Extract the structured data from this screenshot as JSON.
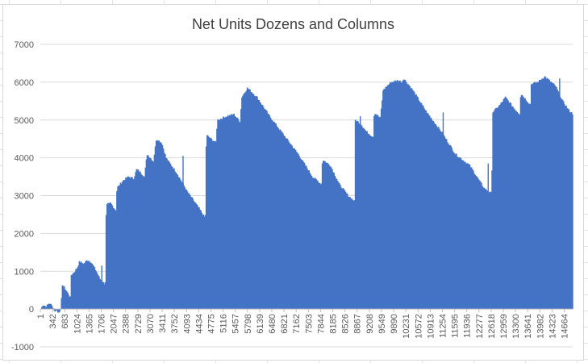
{
  "chart_data": {
    "type": "bar",
    "title": "Net Units Dozens and Columns",
    "xlabel": "",
    "ylabel": "",
    "ylim": [
      -1000,
      7000
    ],
    "yticks": [
      -1000,
      0,
      1000,
      2000,
      3000,
      4000,
      5000,
      6000,
      7000
    ],
    "x_tick_labels": [
      "1",
      "342",
      "683",
      "1024",
      "1365",
      "1706",
      "2047",
      "2388",
      "2729",
      "3070",
      "3411",
      "3752",
      "4093",
      "4434",
      "4775",
      "5116",
      "5457",
      "5798",
      "6139",
      "6480",
      "6821",
      "7162",
      "7503",
      "7844",
      "8185",
      "8526",
      "8867",
      "9208",
      "9549",
      "9890",
      "10231",
      "10572",
      "10913",
      "11254",
      "11595",
      "11936",
      "12277",
      "12618",
      "12959",
      "13300",
      "13641",
      "13982",
      "14323",
      "14664"
    ],
    "x_range": [
      1,
      14900
    ],
    "grid": "horizontal",
    "legend": "none",
    "color": "#4472C4",
    "profile": [
      [
        1,
        0
      ],
      [
        60,
        120
      ],
      [
        140,
        60
      ],
      [
        240,
        160
      ],
      [
        330,
        60
      ],
      [
        400,
        -80
      ],
      [
        430,
        0
      ],
      [
        480,
        -100
      ],
      [
        560,
        0
      ],
      [
        600,
        650
      ],
      [
        700,
        500
      ],
      [
        830,
        300
      ],
      [
        850,
        900
      ],
      [
        950,
        1000
      ],
      [
        1020,
        1100
      ],
      [
        1080,
        1250
      ],
      [
        1200,
        1200
      ],
      [
        1300,
        1300
      ],
      [
        1400,
        1250
      ],
      [
        1550,
        1000
      ],
      [
        1650,
        800
      ],
      [
        1800,
        650
      ],
      [
        1830,
        2750
      ],
      [
        1950,
        2800
      ],
      [
        2100,
        2600
      ],
      [
        2130,
        3200
      ],
      [
        2300,
        3400
      ],
      [
        2450,
        3500
      ],
      [
        2600,
        3450
      ],
      [
        2680,
        3700
      ],
      [
        2800,
        3600
      ],
      [
        2900,
        3500
      ],
      [
        2970,
        4100
      ],
      [
        3150,
        3900
      ],
      [
        3230,
        4500
      ],
      [
        3380,
        4400
      ],
      [
        3500,
        4000
      ],
      [
        3800,
        3600
      ],
      [
        4100,
        3100
      ],
      [
        4400,
        2700
      ],
      [
        4600,
        2400
      ],
      [
        4630,
        4600
      ],
      [
        4900,
        4400
      ],
      [
        4940,
        5000
      ],
      [
        5200,
        5100
      ],
      [
        5400,
        5150
      ],
      [
        5580,
        4950
      ],
      [
        5620,
        5600
      ],
      [
        5780,
        5850
      ],
      [
        6050,
        5600
      ],
      [
        6400,
        5100
      ],
      [
        6800,
        4600
      ],
      [
        7200,
        4100
      ],
      [
        7600,
        3500
      ],
      [
        7850,
        3300
      ],
      [
        7880,
        3950
      ],
      [
        8100,
        3800
      ],
      [
        8350,
        3300
      ],
      [
        8600,
        3000
      ],
      [
        8780,
        2850
      ],
      [
        8800,
        5000
      ],
      [
        8950,
        4900
      ],
      [
        9100,
        4700
      ],
      [
        9300,
        4550
      ],
      [
        9330,
        5200
      ],
      [
        9500,
        5050
      ],
      [
        9580,
        5800
      ],
      [
        9800,
        6000
      ],
      [
        10000,
        6050
      ],
      [
        10100,
        6000
      ],
      [
        10150,
        6100
      ],
      [
        10400,
        5800
      ],
      [
        10800,
        5200
      ],
      [
        11200,
        4700
      ],
      [
        11600,
        4100
      ],
      [
        12000,
        3800
      ],
      [
        12400,
        3200
      ],
      [
        12620,
        3050
      ],
      [
        12640,
        5200
      ],
      [
        12850,
        5400
      ],
      [
        13000,
        5600
      ],
      [
        13250,
        5300
      ],
      [
        13400,
        5150
      ],
      [
        13430,
        5700
      ],
      [
        13700,
        5400
      ],
      [
        13720,
        5950
      ],
      [
        13900,
        6000
      ],
      [
        14100,
        6150
      ],
      [
        14400,
        5900
      ],
      [
        14600,
        5500
      ],
      [
        14780,
        5250
      ],
      [
        14900,
        5150
      ]
    ],
    "spikes": [
      [
        1706,
        1150
      ],
      [
        3980,
        4050
      ],
      [
        8940,
        5100
      ],
      [
        11260,
        5200
      ],
      [
        12520,
        3850
      ],
      [
        14520,
        6100
      ]
    ]
  }
}
